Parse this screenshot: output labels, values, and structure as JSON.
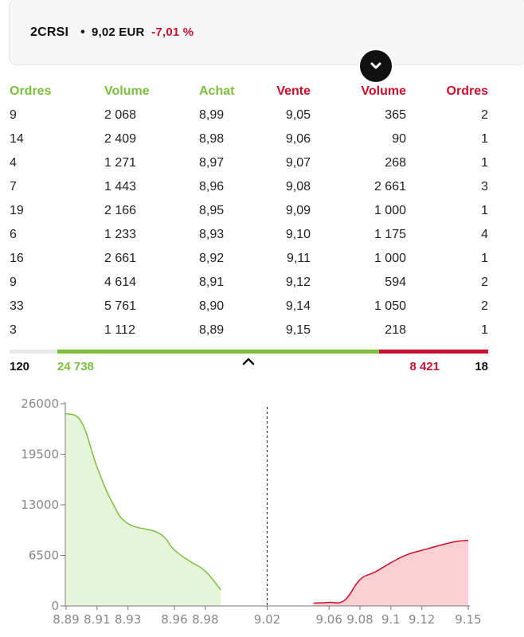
{
  "header": {
    "symbol": "2CRSI",
    "separator": "•",
    "price": "9,02 EUR",
    "change": "-7,01 %"
  },
  "columns": {
    "buy_orders": "Ordres",
    "buy_volume": "Volume",
    "buy_price": "Achat",
    "sell_price": "Vente",
    "sell_volume": "Volume",
    "sell_orders": "Ordres"
  },
  "rows": [
    {
      "buy_orders": "9",
      "buy_volume": "2 068",
      "buy_price": "8,99",
      "sell_price": "9,05",
      "sell_volume": "365",
      "sell_orders": "2"
    },
    {
      "buy_orders": "14",
      "buy_volume": "2 409",
      "buy_price": "8,98",
      "sell_price": "9,06",
      "sell_volume": "90",
      "sell_orders": "1"
    },
    {
      "buy_orders": "4",
      "buy_volume": "1 271",
      "buy_price": "8,97",
      "sell_price": "9,07",
      "sell_volume": "268",
      "sell_orders": "1"
    },
    {
      "buy_orders": "7",
      "buy_volume": "1 443",
      "buy_price": "8,96",
      "sell_price": "9,08",
      "sell_volume": "2 661",
      "sell_orders": "3"
    },
    {
      "buy_orders": "19",
      "buy_volume": "2 166",
      "buy_price": "8,95",
      "sell_price": "9,09",
      "sell_volume": "1 000",
      "sell_orders": "1"
    },
    {
      "buy_orders": "6",
      "buy_volume": "1 233",
      "buy_price": "8,93",
      "sell_price": "9,10",
      "sell_volume": "1 175",
      "sell_orders": "4"
    },
    {
      "buy_orders": "16",
      "buy_volume": "2 661",
      "buy_price": "8,92",
      "sell_price": "9,11",
      "sell_volume": "1 000",
      "sell_orders": "1"
    },
    {
      "buy_orders": "9",
      "buy_volume": "4 614",
      "buy_price": "8,91",
      "sell_price": "9,12",
      "sell_volume": "594",
      "sell_orders": "2"
    },
    {
      "buy_orders": "33",
      "buy_volume": "5 761",
      "buy_price": "8,90",
      "sell_price": "9,14",
      "sell_volume": "1 050",
      "sell_orders": "2"
    },
    {
      "buy_orders": "3",
      "buy_volume": "1 112",
      "buy_price": "8,89",
      "sell_price": "9,15",
      "sell_volume": "218",
      "sell_orders": "1"
    }
  ],
  "totals": {
    "buy_orders": "120",
    "buy_volume": "24 738",
    "sell_volume": "8 421",
    "sell_orders": "18",
    "buy_share": 0.746
  },
  "icons": {
    "toggle": "chevron-down-icon",
    "collapse": "chevron-up-icon"
  },
  "colors": {
    "buy": "#7bbf3e",
    "sell": "#c8102e",
    "buy_fill": "#e6f5da",
    "sell_fill": "#f9cfd3"
  },
  "chart_data": {
    "type": "area",
    "title": "",
    "xlabel": "",
    "ylabel": "",
    "ylim": [
      0,
      26000
    ],
    "xlim": [
      8.89,
      9.15
    ],
    "y_ticks": [
      0,
      6500,
      13000,
      19500,
      26000
    ],
    "y_tick_labels": [
      "0",
      "6500",
      "13000",
      "19500",
      "26000"
    ],
    "x_ticks": [
      8.89,
      8.91,
      8.93,
      8.96,
      8.98,
      9.02,
      9.06,
      9.08,
      9.1,
      9.12,
      9.15
    ],
    "x_tick_labels": [
      "8.89",
      "8.91",
      "8.93",
      "8.96",
      "8.98",
      "9.02",
      "9.06",
      "9.08",
      "9.1",
      "9.12",
      "9.15"
    ],
    "reference_line": 9.02,
    "series": [
      {
        "name": "Achat",
        "color": "#7bbf3e",
        "x": [
          8.89,
          8.9,
          8.91,
          8.92,
          8.93,
          8.95,
          8.96,
          8.97,
          8.98,
          8.99
        ],
        "y": [
          24738,
          23626,
          17865,
          13251,
          10590,
          9357,
          7191,
          5748,
          4477,
          2068
        ]
      },
      {
        "name": "Vente",
        "color": "#c8102e",
        "x": [
          9.05,
          9.06,
          9.07,
          9.08,
          9.09,
          9.1,
          9.11,
          9.12,
          9.14,
          9.15
        ],
        "y": [
          365,
          455,
          723,
          3384,
          4384,
          5559,
          6559,
          7153,
          8203,
          8421
        ]
      }
    ]
  }
}
